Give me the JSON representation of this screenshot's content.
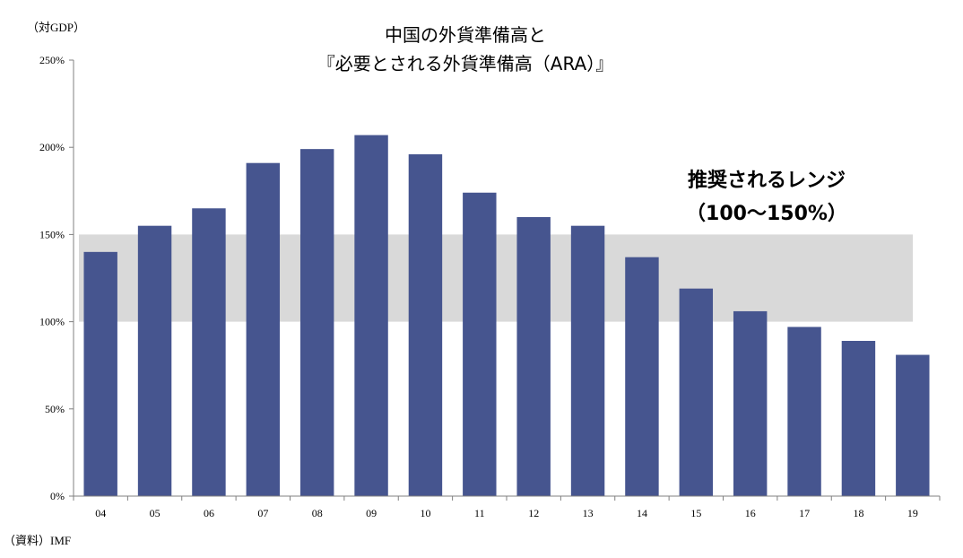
{
  "chart_data": {
    "type": "bar",
    "title_lines": [
      "中国の外貨準備高と",
      "『必要とされる外貨準備高（ARA）』"
    ],
    "unit_label": "（対GDP）",
    "source": "（資料）IMF",
    "categories": [
      "04",
      "05",
      "06",
      "07",
      "08",
      "09",
      "10",
      "11",
      "12",
      "13",
      "14",
      "15",
      "16",
      "17",
      "18",
      "19"
    ],
    "values": [
      140,
      155,
      165,
      191,
      199,
      207,
      196,
      174,
      160,
      155,
      137,
      119,
      106,
      97,
      89,
      81
    ],
    "ylim": [
      0,
      250
    ],
    "yticks": [
      0,
      50,
      100,
      150,
      200,
      250
    ],
    "ytick_labels": [
      "0%",
      "50%",
      "100%",
      "150%",
      "200%",
      "250%"
    ],
    "band": {
      "from": 100,
      "to": 150,
      "label_lines": [
        "推奨されるレンジ",
        "（100～150%）"
      ]
    },
    "colors": {
      "bar": "#46558f",
      "band": "#d9d9d9",
      "axis": "#808080"
    },
    "grid": false,
    "legend": "none"
  }
}
